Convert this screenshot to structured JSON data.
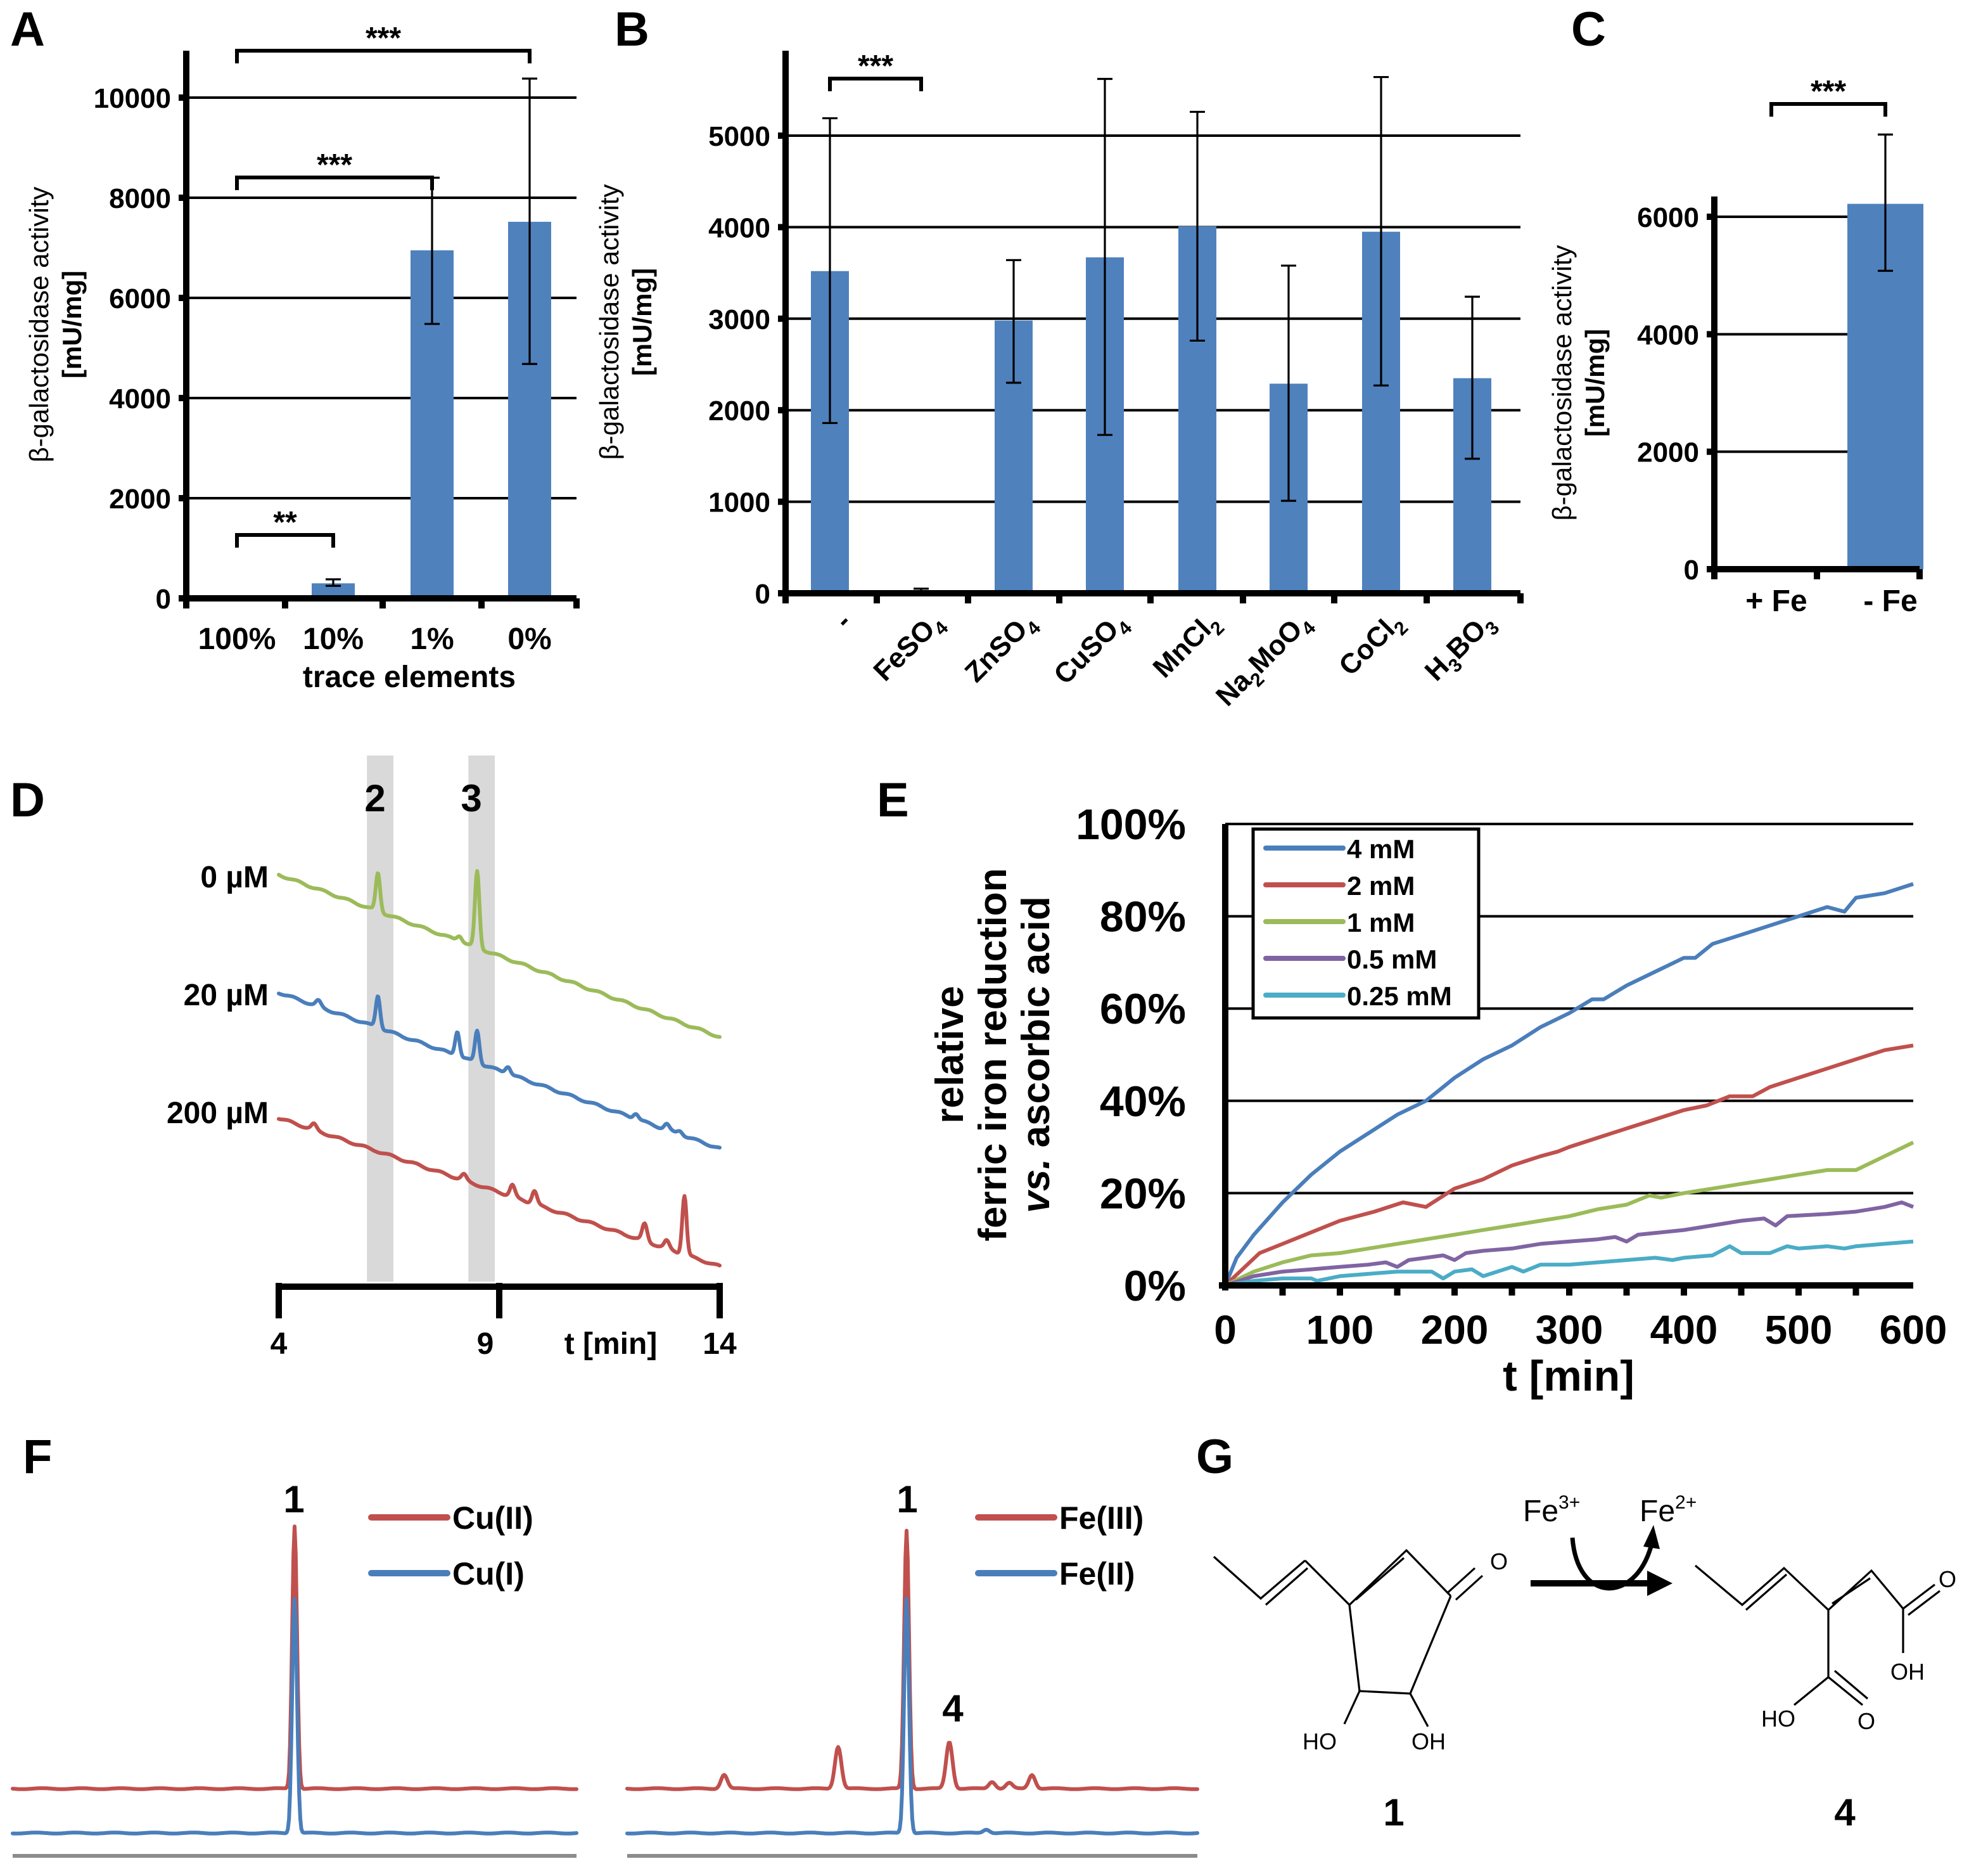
{
  "colors": {
    "bar": "#4f81bd",
    "blue": "#4a7ebb",
    "red": "#c0504d",
    "green": "#9bbb59",
    "purple": "#8064a2",
    "cyan": "#4bacc6",
    "band": "#d9d9d9",
    "ruler": "#8c8c8c"
  },
  "chart_data": [
    {
      "panel": "A",
      "type": "bar",
      "ylabel_line1": "β-galactosidase activity",
      "ylabel_line2": "[mU/mg]",
      "xlabel": "trace elements",
      "categories": [
        "100%",
        "10%",
        "1%",
        "0%"
      ],
      "values": [
        20,
        300,
        6950,
        7520
      ],
      "errors_low": [
        20,
        250,
        5480,
        4680
      ],
      "errors_high": [
        20,
        380,
        8400,
        10380
      ],
      "yticks": [
        0,
        2000,
        4000,
        6000,
        8000,
        10000
      ],
      "ylim": [
        0,
        11000
      ],
      "grid": true,
      "significance": [
        {
          "from": 0,
          "to": 1,
          "label": "**"
        },
        {
          "from": 0,
          "to": 2,
          "label": "***"
        },
        {
          "from": 0,
          "to": 3,
          "label": "***"
        }
      ]
    },
    {
      "panel": "B",
      "type": "bar",
      "ylabel_line1": "β-galactosidase activity",
      "ylabel_line2": "[mU/mg]",
      "xlabel": "",
      "categories": [
        "-",
        "FeSO4",
        "ZnSO4",
        "CuSO4",
        "MnCl2",
        "Na2MoO4",
        "CoCl2",
        "H3BO3"
      ],
      "category_display": [
        {
          "base": "-",
          "parts": []
        },
        {
          "base": "FeSO",
          "sub": "4"
        },
        {
          "base": "ZnSO",
          "sub": "4"
        },
        {
          "base": "CuSO",
          "sub": "4"
        },
        {
          "base": "MnCl",
          "sub": "2"
        },
        {
          "base": "Na",
          "sub": "2",
          "rest": "MoO",
          "sub2": "4"
        },
        {
          "base": "CoCl",
          "sub": "2"
        },
        {
          "base": "H",
          "sub": "3",
          "rest": "BO",
          "sub2": "3"
        }
      ],
      "values": [
        3520,
        20,
        2980,
        3670,
        4010,
        2290,
        3950,
        2350
      ],
      "errors_low": [
        1860,
        0,
        2300,
        1730,
        2760,
        1010,
        2270,
        1470
      ],
      "errors_high": [
        5190,
        50,
        3640,
        5620,
        5260,
        3580,
        5640,
        3240
      ],
      "yticks": [
        0,
        1000,
        2000,
        3000,
        4000,
        5000
      ],
      "ylim": [
        0,
        5800
      ],
      "grid": true,
      "significance": [
        {
          "from": 0,
          "to": 1,
          "label": "***"
        }
      ]
    },
    {
      "panel": "C",
      "type": "bar",
      "ylabel_line1": "β-galactosidase activity",
      "ylabel_line2": "[mU/mg]",
      "xlabel": "",
      "categories": [
        "+ Fe",
        "- Fe"
      ],
      "values": [
        20,
        6220
      ],
      "errors_low": [
        20,
        5080
      ],
      "errors_high": [
        20,
        7400
      ],
      "yticks": [
        0,
        2000,
        4000,
        6000
      ],
      "ylim": [
        0,
        7600
      ],
      "grid": true,
      "significance": [
        {
          "from": 0,
          "to": 1,
          "label": "***"
        }
      ]
    },
    {
      "panel": "D",
      "type": "line",
      "title": "",
      "xlabel": "t [min]",
      "xticks": [
        4,
        9,
        14
      ],
      "xlim": [
        4,
        14
      ],
      "highlight_bands": [
        {
          "label": "2",
          "from": 6.0,
          "to": 6.6
        },
        {
          "label": "3",
          "from": 8.3,
          "to": 8.9
        }
      ],
      "series": [
        {
          "name": "0 µM",
          "color_key": "green",
          "offset": 0,
          "peaks": [
            [
              6.25,
              1.0
            ],
            [
              8.1,
              0.15
            ],
            [
              8.5,
              2.0
            ]
          ]
        },
        {
          "name": "20 µM",
          "color_key": "blue",
          "offset": 1,
          "peaks": [
            [
              4.9,
              0.15
            ],
            [
              6.25,
              0.85
            ],
            [
              8.05,
              0.65
            ],
            [
              8.5,
              0.85
            ],
            [
              9.2,
              0.2
            ],
            [
              12.1,
              0.15
            ],
            [
              12.8,
              0.15
            ],
            [
              13.1,
              0.1
            ]
          ]
        },
        {
          "name": "200 µM",
          "color_key": "red",
          "offset": 2,
          "peaks": [
            [
              4.8,
              0.15
            ],
            [
              8.2,
              0.15
            ],
            [
              9.3,
              0.3
            ],
            [
              9.8,
              0.35
            ],
            [
              12.3,
              0.45
            ],
            [
              12.8,
              0.2
            ],
            [
              13.2,
              1.55
            ]
          ]
        }
      ]
    },
    {
      "panel": "E",
      "type": "line",
      "xlabel": "t [min]",
      "ylabel_line1": "relative",
      "ylabel_line2": "ferric iron reduction",
      "ylabel_line3_italic": "vs.",
      "ylabel_line3_rest": " ascorbic acid",
      "xticks": [
        0,
        100,
        200,
        300,
        400,
        500,
        600
      ],
      "yticks": [
        0,
        20,
        40,
        60,
        80,
        100
      ],
      "ytick_labels": [
        "0%",
        "20%",
        "40%",
        "60%",
        "80%",
        "100%"
      ],
      "xlim": [
        0,
        600
      ],
      "ylim": [
        0,
        100
      ],
      "grid": true,
      "legend": "top-left",
      "series": [
        {
          "name": "4 mM",
          "color_key": "blue",
          "x": [
            0,
            10,
            25,
            50,
            75,
            100,
            125,
            150,
            175,
            190,
            200,
            225,
            250,
            275,
            300,
            320,
            330,
            350,
            375,
            400,
            410,
            425,
            450,
            475,
            500,
            525,
            540,
            550,
            575,
            600
          ],
          "y": [
            0,
            6,
            11,
            18,
            24,
            29,
            33,
            37,
            40,
            43,
            45,
            49,
            52,
            56,
            59,
            62,
            62,
            65,
            68,
            71,
            71,
            74,
            76,
            78,
            80,
            82,
            81,
            84,
            85,
            87
          ]
        },
        {
          "name": "2 mM",
          "color_key": "red",
          "x": [
            0,
            30,
            60,
            100,
            130,
            155,
            175,
            200,
            225,
            250,
            275,
            290,
            300,
            325,
            350,
            375,
            400,
            420,
            440,
            460,
            475,
            500,
            525,
            550,
            575,
            600
          ],
          "y": [
            0,
            7,
            10,
            14,
            16,
            18,
            17,
            21,
            23,
            26,
            28,
            29,
            30,
            32,
            34,
            36,
            38,
            39,
            41,
            41,
            43,
            45,
            47,
            49,
            51,
            52
          ]
        },
        {
          "name": "1 mM",
          "color_key": "green",
          "x": [
            0,
            25,
            50,
            75,
            100,
            125,
            150,
            175,
            200,
            225,
            250,
            275,
            300,
            325,
            350,
            370,
            380,
            400,
            425,
            450,
            475,
            500,
            525,
            550,
            575,
            600
          ],
          "y": [
            0,
            3,
            5,
            6.5,
            7,
            8,
            9,
            10,
            11,
            12,
            13,
            14,
            15,
            16.5,
            17.5,
            19.5,
            19,
            20,
            21,
            22,
            23,
            24,
            25,
            25,
            28,
            31
          ]
        },
        {
          "name": "0.5 mM",
          "color_key": "purple",
          "x": [
            0,
            25,
            50,
            75,
            100,
            125,
            140,
            150,
            160,
            175,
            190,
            200,
            210,
            225,
            250,
            275,
            300,
            325,
            340,
            350,
            360,
            400,
            425,
            450,
            470,
            480,
            490,
            525,
            550,
            575,
            590,
            600
          ],
          "y": [
            0,
            2,
            3,
            3.5,
            4,
            4.5,
            5,
            4,
            5.5,
            6,
            6.5,
            5.5,
            7,
            7.5,
            8,
            9,
            9.5,
            10,
            10.5,
            9.5,
            11,
            12,
            13,
            14,
            14.5,
            13,
            15,
            15.5,
            16,
            17,
            18,
            17
          ]
        },
        {
          "name": "0.25 mM",
          "color_key": "cyan",
          "x": [
            0,
            25,
            50,
            75,
            80,
            100,
            125,
            150,
            175,
            180,
            190,
            200,
            215,
            225,
            250,
            260,
            275,
            300,
            325,
            350,
            375,
            390,
            400,
            425,
            440,
            450,
            475,
            490,
            500,
            525,
            540,
            550,
            575,
            600
          ],
          "y": [
            0,
            1,
            1.5,
            1.5,
            1,
            2,
            2.5,
            3,
            3,
            3,
            1.5,
            3,
            3.5,
            2,
            4,
            3,
            4.5,
            4.5,
            5,
            5.5,
            6,
            5.5,
            6,
            6.5,
            8.5,
            7,
            7,
            8.5,
            8,
            8.5,
            8,
            8.5,
            9,
            9.5
          ]
        }
      ]
    },
    {
      "panel": "F-left",
      "type": "line",
      "peak_label": "1",
      "series": [
        {
          "name": "Cu(II)",
          "color_key": "red",
          "peaks": [
            [
              0.5,
              5.6
            ]
          ]
        },
        {
          "name": "Cu(I)",
          "color_key": "blue",
          "peaks": [
            [
              0.5,
              5.0
            ]
          ]
        }
      ]
    },
    {
      "panel": "F-right",
      "type": "line",
      "peak_labels": [
        "1",
        "4"
      ],
      "series": [
        {
          "name": "Fe(III)",
          "color_key": "red",
          "peaks": [
            [
              0.17,
              0.3
            ],
            [
              0.37,
              0.9
            ],
            [
              0.49,
              5.5
            ],
            [
              0.565,
              1.0
            ],
            [
              0.64,
              0.15
            ],
            [
              0.67,
              0.12
            ],
            [
              0.71,
              0.3
            ]
          ]
        },
        {
          "name": "Fe(II)",
          "color_key": "blue",
          "peaks": [
            [
              0.49,
              5.0
            ],
            [
              0.63,
              0.08
            ]
          ]
        }
      ]
    }
  ],
  "panels": {
    "A": {
      "letter": "A"
    },
    "B": {
      "letter": "B"
    },
    "C": {
      "letter": "C"
    },
    "D": {
      "letter": "D",
      "band_labels": [
        "2",
        "3"
      ],
      "x_ticks": [
        "4",
        "9",
        "14"
      ],
      "x_label": "t [min]",
      "trace_labels": [
        "0 µM",
        "20 µM",
        "200 µM"
      ]
    },
    "E": {
      "letter": "E"
    },
    "F": {
      "letter": "F",
      "left_peak": "1",
      "right_peak_1": "1",
      "right_peak_4": "4",
      "legend_left": [
        "Cu(II)",
        "Cu(I)"
      ],
      "legend_right": [
        "Fe(III)",
        "Fe(II)"
      ]
    },
    "G": {
      "letter": "G",
      "reagent": "Fe",
      "reagent_charge": "3+",
      "product_ion": "Fe",
      "product_charge": "2+",
      "compound_1_label": "1",
      "compound_4_label": "4",
      "atoms": {
        "O": "O",
        "HO": "HO",
        "OH": "OH"
      }
    }
  }
}
